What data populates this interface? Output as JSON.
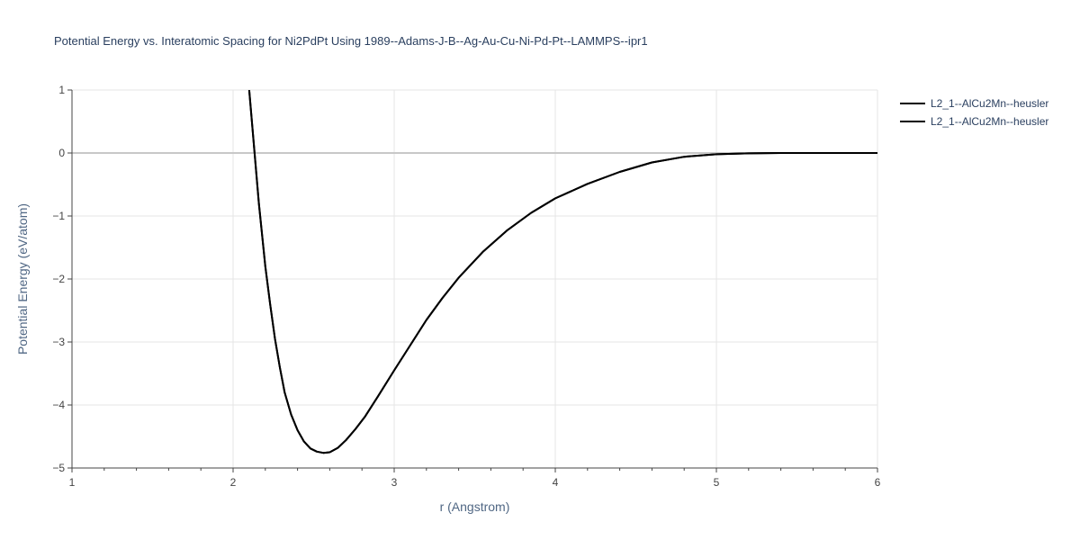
{
  "chart_data": {
    "type": "line",
    "title": "Potential Energy vs. Interatomic Spacing for Ni2PdPt Using 1989--Adams-J-B--Ag-Au-Cu-Ni-Pd-Pt--LAMMPS--ipr1",
    "xlabel": "r (Angstrom)",
    "ylabel": "Potential Energy (eV/atom)",
    "xlim": [
      1,
      6
    ],
    "ylim": [
      -5,
      1
    ],
    "x_ticks": [
      "1",
      "2",
      "3",
      "4",
      "5",
      "6"
    ],
    "y_ticks": [
      "1",
      "0",
      "−1",
      "−2",
      "−3",
      "−4",
      "−5"
    ],
    "grid": true,
    "legend_position": "top-right",
    "colors": {
      "line": "#000000",
      "grid": "#e5e5e5",
      "zeroline": "#c8c8c8",
      "text": "#2a3f5f"
    },
    "series": [
      {
        "name": "L2_1--AlCu2Mn--heusler",
        "x": [
          2.1,
          2.12,
          2.14,
          2.16,
          2.18,
          2.2,
          2.23,
          2.26,
          2.29,
          2.32,
          2.36,
          2.4,
          2.44,
          2.48,
          2.52,
          2.56,
          2.6,
          2.65,
          2.7,
          2.76,
          2.82,
          2.9,
          3.0,
          3.1,
          3.2,
          3.3,
          3.4,
          3.55,
          3.7,
          3.85,
          4.0,
          4.2,
          4.4,
          4.6,
          4.8,
          5.0,
          5.2,
          5.4,
          5.6,
          5.8,
          6.0
        ],
        "y": [
          1.0,
          0.4,
          -0.2,
          -0.8,
          -1.3,
          -1.8,
          -2.4,
          -2.95,
          -3.4,
          -3.8,
          -4.15,
          -4.4,
          -4.58,
          -4.69,
          -4.74,
          -4.76,
          -4.75,
          -4.68,
          -4.56,
          -4.38,
          -4.18,
          -3.86,
          -3.45,
          -3.05,
          -2.65,
          -2.3,
          -1.98,
          -1.57,
          -1.23,
          -0.95,
          -0.72,
          -0.49,
          -0.3,
          -0.15,
          -0.06,
          -0.02,
          -0.005,
          0.0,
          0.0,
          0.0,
          0.0
        ]
      },
      {
        "name": "L2_1--AlCu2Mn--heusler",
        "x": [
          2.1,
          2.12,
          2.14,
          2.16,
          2.18,
          2.2,
          2.23,
          2.26,
          2.29,
          2.32,
          2.36,
          2.4,
          2.44,
          2.48,
          2.52,
          2.56,
          2.6,
          2.65,
          2.7,
          2.76,
          2.82,
          2.9,
          3.0,
          3.1,
          3.2,
          3.3,
          3.4,
          3.55,
          3.7,
          3.85,
          4.0,
          4.2,
          4.4,
          4.6,
          4.8,
          5.0,
          5.2,
          5.4,
          5.6,
          5.8,
          6.0
        ],
        "y": [
          1.0,
          0.4,
          -0.2,
          -0.8,
          -1.3,
          -1.8,
          -2.4,
          -2.95,
          -3.4,
          -3.8,
          -4.15,
          -4.4,
          -4.58,
          -4.69,
          -4.74,
          -4.76,
          -4.75,
          -4.68,
          -4.56,
          -4.38,
          -4.18,
          -3.86,
          -3.45,
          -3.05,
          -2.65,
          -2.3,
          -1.98,
          -1.57,
          -1.23,
          -0.95,
          -0.72,
          -0.49,
          -0.3,
          -0.15,
          -0.06,
          -0.02,
          -0.005,
          0.0,
          0.0,
          0.0,
          0.0
        ]
      }
    ]
  }
}
